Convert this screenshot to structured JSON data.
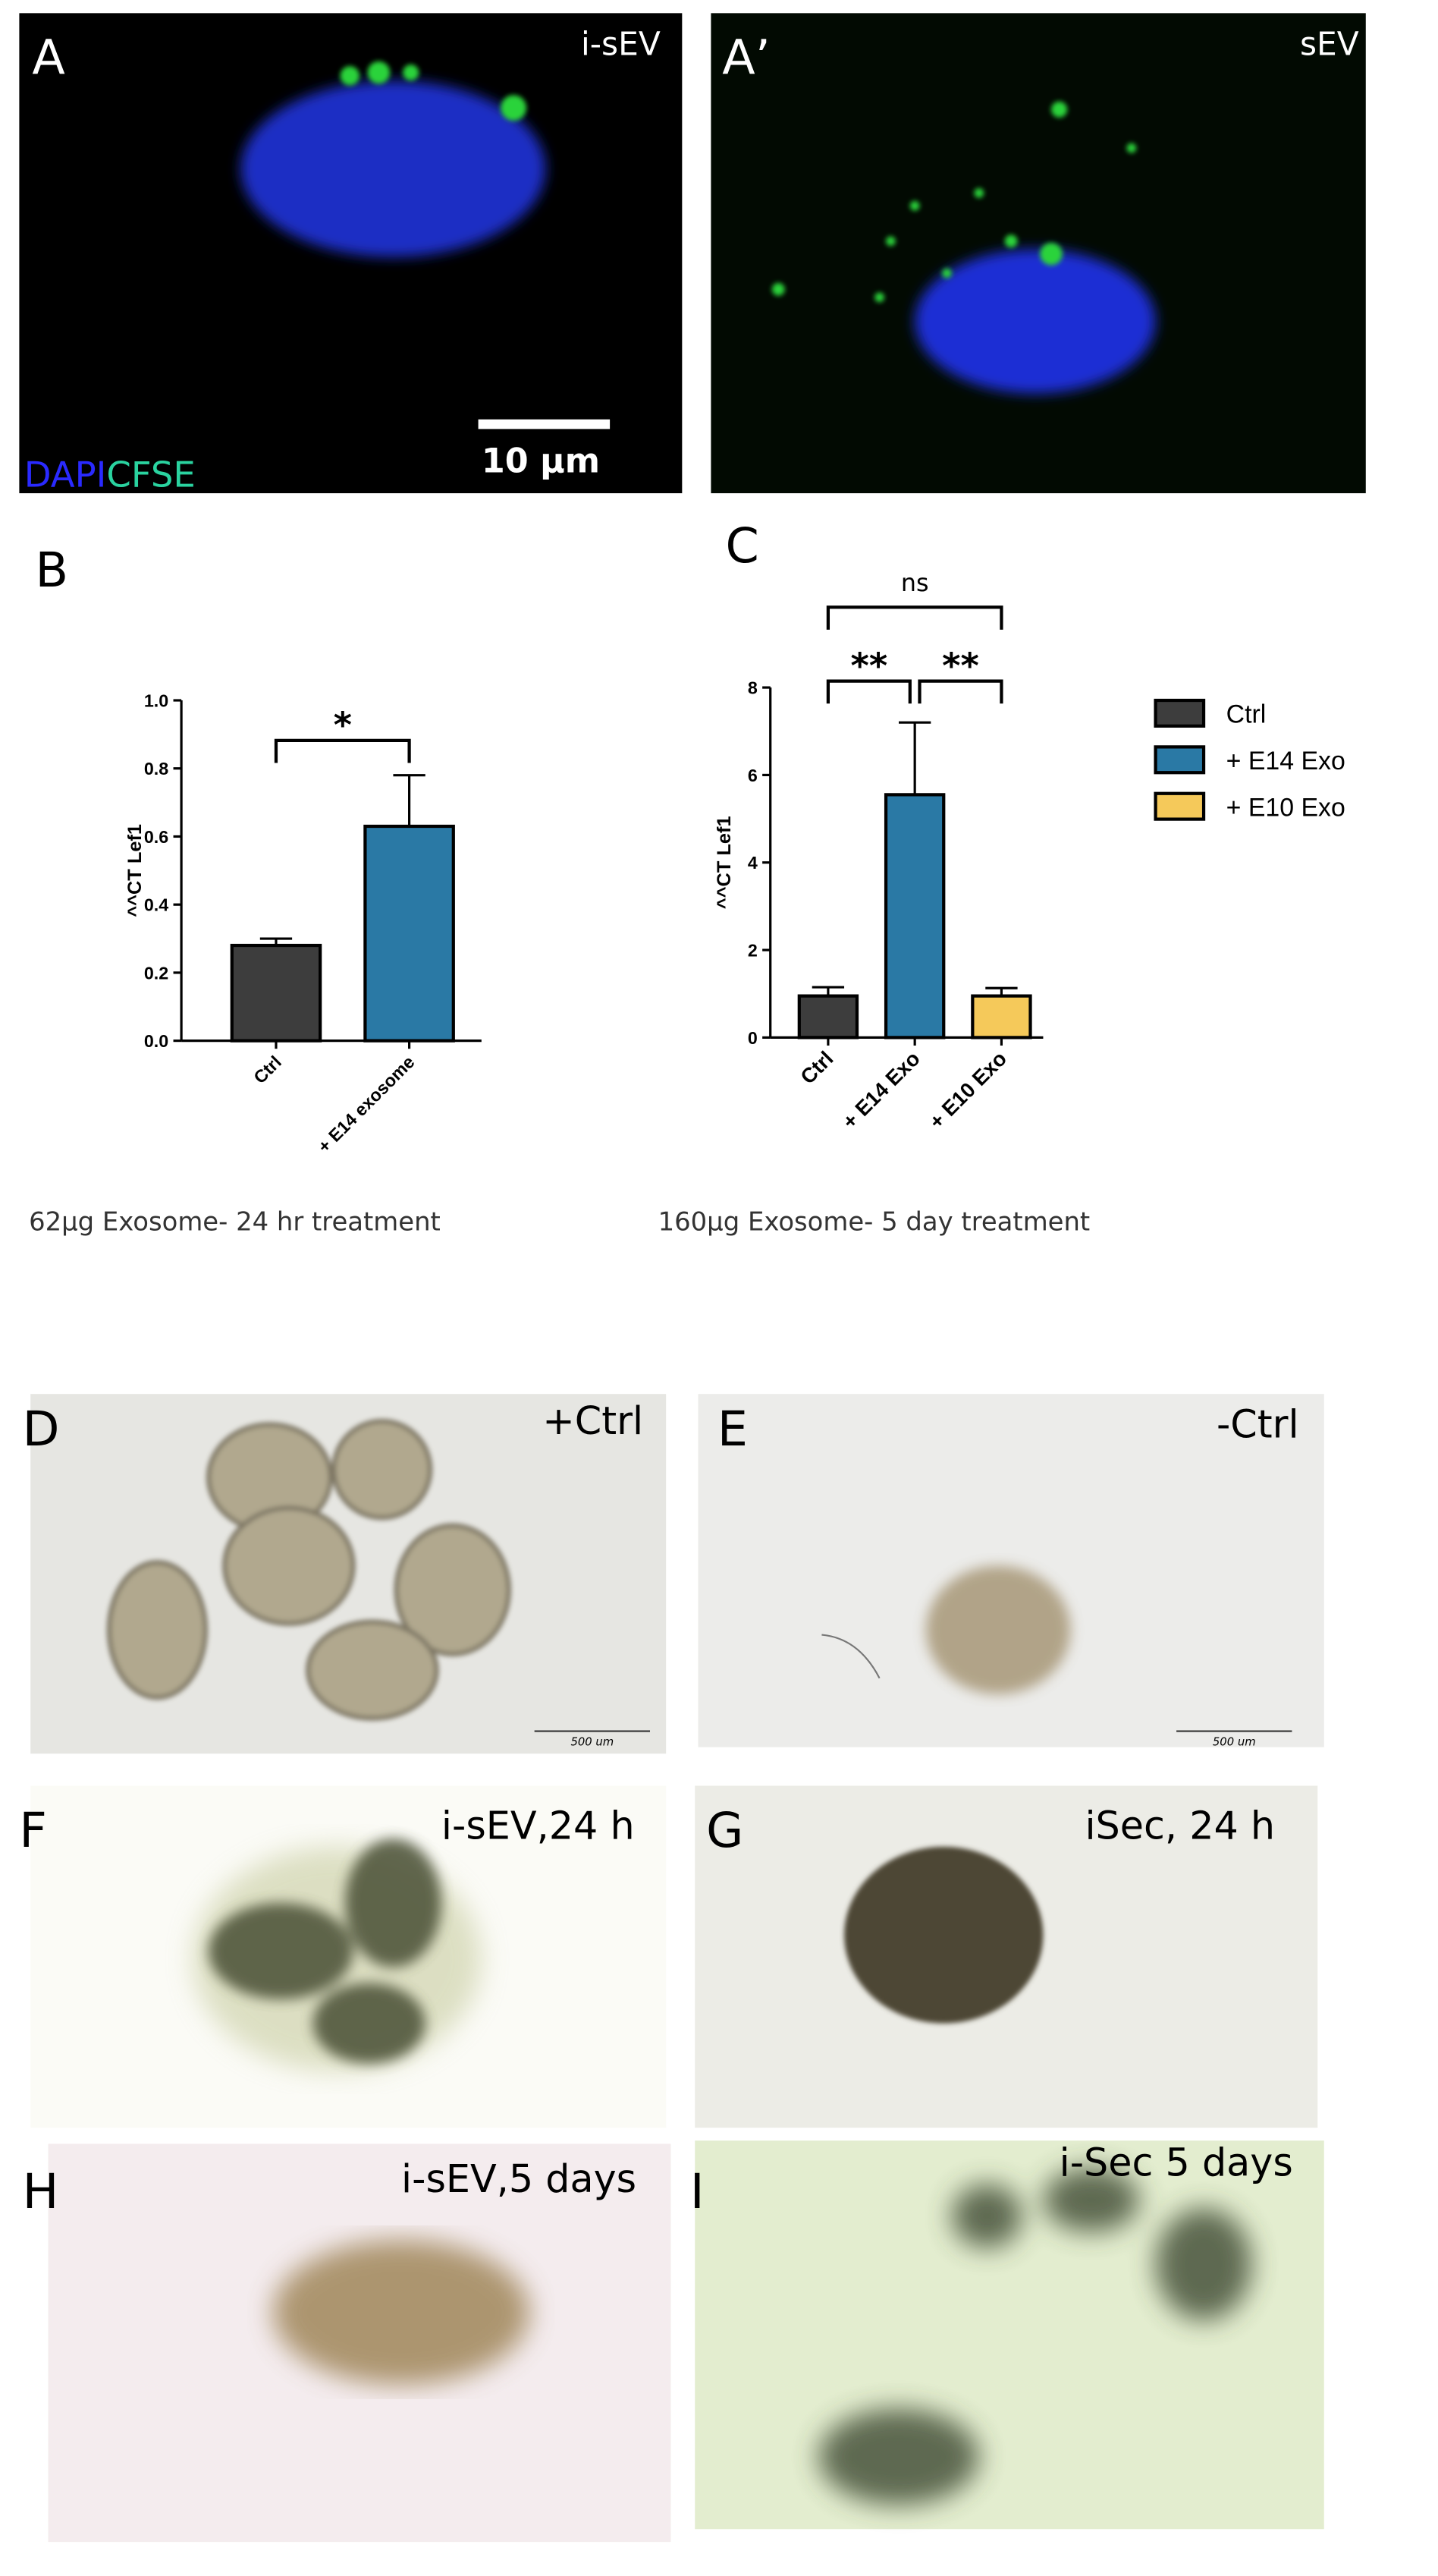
{
  "chart_data": [
    {
      "type": "bar",
      "panel": "B",
      "ylabel": "^^CT Lef1",
      "categories": [
        "Ctrl",
        "+ E14 exosome"
      ],
      "values": [
        0.28,
        0.63
      ],
      "errors": [
        0.02,
        0.15
      ],
      "colors": [
        "#3d3d3d",
        "#2a79a5"
      ],
      "ylim": [
        0,
        1.0
      ],
      "yticks": [
        {
          "value": 0,
          "label": "0.0"
        },
        {
          "value": 0.2,
          "label": "0.2"
        },
        {
          "value": 0.4,
          "label": "0.4"
        },
        {
          "value": 0.6,
          "label": "0.6"
        },
        {
          "value": 0.8,
          "label": "0.8"
        },
        {
          "value": 1.0,
          "label": "1.0"
        }
      ],
      "annotations": [
        "*"
      ],
      "caption": "62µg Exosome- 24 hr  treatment"
    },
    {
      "type": "bar",
      "panel": "C",
      "ylabel": "^^CT Lef1",
      "categories": [
        "Ctrl",
        "+ E14 Exo",
        "+ E10 Exo"
      ],
      "values": [
        0.95,
        5.55,
        0.95
      ],
      "errors": [
        0.2,
        1.65,
        0.18
      ],
      "colors": [
        "#3d3d3d",
        "#2a79a5",
        "#f5c95a"
      ],
      "ylim": [
        0,
        8
      ],
      "yticks": [
        0,
        2,
        4,
        6,
        8
      ],
      "annotations": [
        "**",
        "**",
        "ns"
      ],
      "legend": true,
      "caption": "160µg Exosome- 5 day treatment"
    }
  ],
  "panels": [
    {
      "letter": "A",
      "label": "i-sEV",
      "stain": [
        "DAPI",
        "CFSE"
      ],
      "scale_bar": "10 µm"
    },
    {
      "letter": "A’",
      "label": "sEV"
    },
    {
      "letter": "D",
      "label": "+Ctrl",
      "scale_bar": "500 um"
    },
    {
      "letter": "E",
      "label": "-Ctrl",
      "scale_bar": "500 um"
    },
    {
      "letter": "F",
      "label": "i-sEV,24 h"
    },
    {
      "letter": "G",
      "label": "iSec, 24 h"
    },
    {
      "letter": "H",
      "label": "i-sEV,5 days"
    },
    {
      "letter": "I",
      "label": "i-Sec 5 days"
    }
  ]
}
